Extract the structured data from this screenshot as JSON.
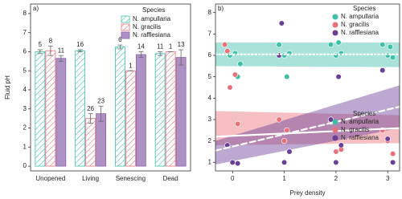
{
  "chart_data": [
    {
      "type": "bar",
      "panel_label": "a)",
      "y_label": "Fluid pH",
      "legend_title": "Species",
      "categories": [
        "Unopened",
        "Living",
        "Senescing",
        "Dead"
      ],
      "ylim": [
        -0.25,
        8.5
      ],
      "yticks": [
        0,
        1,
        2,
        3,
        4,
        5,
        6,
        7,
        8
      ],
      "series": [
        {
          "name": "N. ampullaria",
          "color": "#3dbfa8",
          "hatch": true,
          "values": [
            6.0,
            6.05,
            6.25,
            5.9
          ],
          "errors": [
            0.1,
            0.05,
            0.1,
            0.1
          ],
          "n": [
            5,
            16,
            6,
            11
          ]
        },
        {
          "name": "N. gracilis",
          "color": "#e8717a",
          "hatch": true,
          "values": [
            6.05,
            2.5,
            5.0,
            6.0
          ],
          "errors": [
            0.25,
            0.25,
            0,
            0
          ],
          "n": [
            8,
            26,
            1,
            1
          ]
        },
        {
          "name": "N. rafflesiana",
          "color": "#8a62ad",
          "hatch": false,
          "values": [
            5.65,
            2.75,
            5.85,
            5.7
          ],
          "errors": [
            0.15,
            0.4,
            0.15,
            0.4
          ],
          "n": [
            11,
            23,
            14,
            13
          ]
        }
      ]
    },
    {
      "type": "scatter",
      "panel_label": "b)",
      "x_label": "Prey density",
      "legend_title": "Species",
      "xlim": [
        -0.33,
        3.23
      ],
      "xticks": [
        0,
        1,
        2,
        3
      ],
      "ylim": [
        0.6,
        8.4
      ],
      "yticks": [
        1,
        2,
        3,
        4,
        5,
        6,
        7,
        8
      ],
      "series": [
        {
          "name": "N. ampullaria",
          "color": "#3dbfa8",
          "line_style": "dotted",
          "x": [
            -0.15,
            -0.05,
            0.05,
            0.15,
            0.9,
            1.0,
            1.1,
            1.9,
            2.0,
            2.1,
            2.9,
            3.0,
            3.1,
            0.1,
            1.05,
            2.05,
            3.05
          ],
          "values": [
            6.5,
            6.0,
            6.1,
            5.6,
            6.5,
            6.0,
            6.1,
            6.5,
            6.0,
            6.1,
            6.5,
            6.0,
            5.9,
            5.0,
            5.0,
            6.6,
            6.4
          ],
          "fit": {
            "x": [
              -0.33,
              3.23
            ],
            "y": [
              6.05,
              6.05
            ],
            "lower": [
              5.5,
              5.45
            ],
            "upper": [
              6.6,
              6.6
            ]
          }
        },
        {
          "name": "N. gracilis",
          "color": "#e8717a",
          "line_style": "solid",
          "x": [
            -0.15,
            -0.05,
            0.05,
            0.1,
            0.9,
            1.0,
            1.1,
            1.9,
            2.0,
            2.1,
            2.9,
            3.0,
            3.1,
            -0.1,
            1.05
          ],
          "values": [
            6.5,
            4.5,
            5.1,
            2.8,
            3.0,
            2.0,
            1.5,
            2.9,
            1.5,
            1.6,
            2.5,
            2.0,
            1.4,
            6.2,
            2.5
          ],
          "fit": {
            "x": [
              -0.33,
              3.23
            ],
            "y": [
              2.2,
              2.6
            ],
            "lower": [
              1.8,
              1.9
            ],
            "upper": [
              3.4,
              3.2
            ]
          }
        },
        {
          "name": "N. rafflesiana",
          "color": "#6b3f96",
          "line_style": "dashed",
          "x": [
            -0.1,
            0.0,
            0.1,
            0.9,
            1.0,
            1.1,
            1.9,
            2.0,
            2.1,
            2.9,
            3.0,
            3.1,
            0.95,
            2.05
          ],
          "values": [
            1.8,
            1.0,
            0.95,
            6.0,
            1.0,
            1.5,
            3.0,
            1.0,
            1.8,
            5.3,
            2.1,
            1.0,
            7.5,
            5.0
          ],
          "fit": {
            "x": [
              -0.33,
              3.23
            ],
            "y": [
              1.55,
              3.6
            ],
            "lower": [
              0.9,
              2.6
            ],
            "upper": [
              2.0,
              4.6
            ]
          }
        }
      ]
    }
  ]
}
